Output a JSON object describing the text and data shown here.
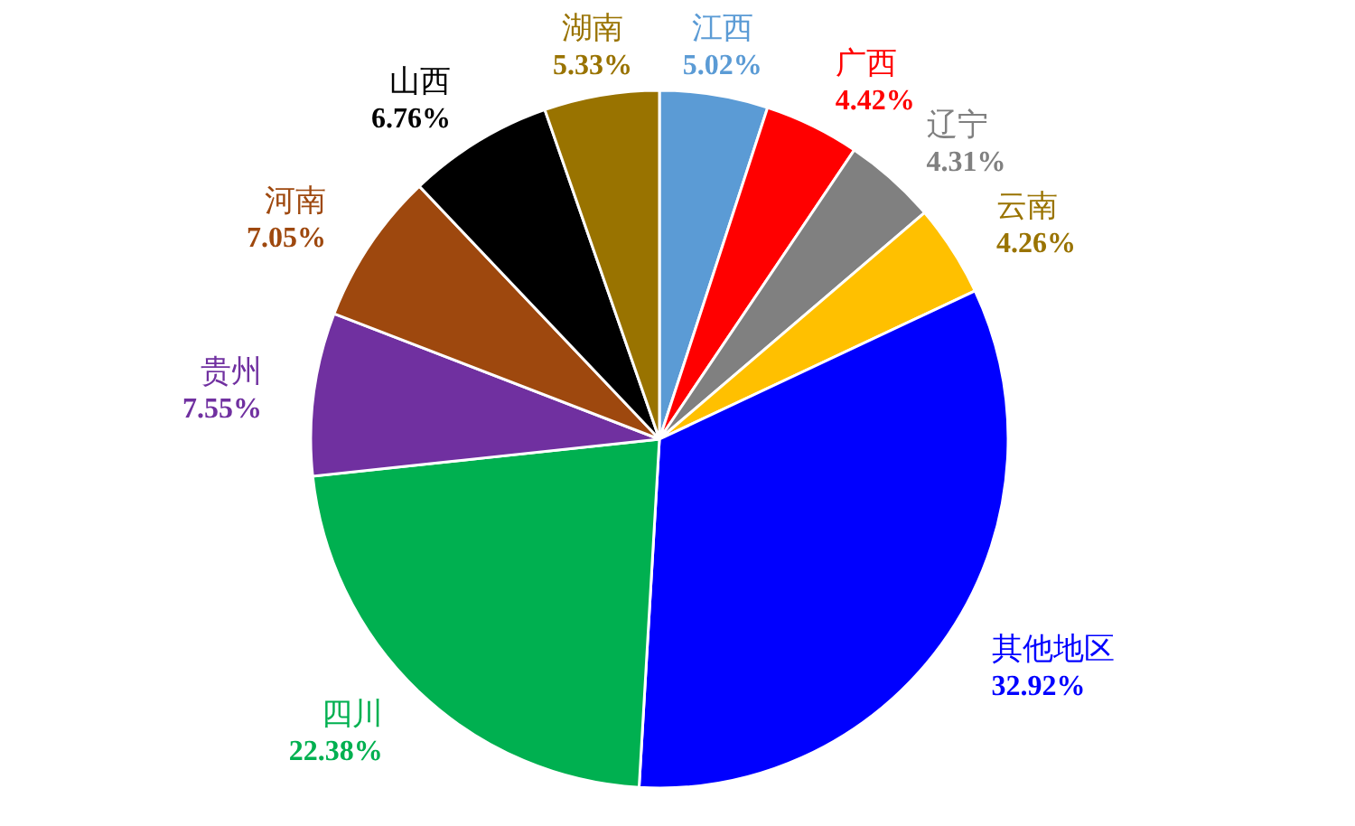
{
  "chart_data": {
    "type": "pie",
    "categories": [
      "江西",
      "广西",
      "辽宁",
      "云南",
      "其他地区",
      "四川",
      "贵州",
      "河南",
      "山西",
      "湖南"
    ],
    "values": [
      5.02,
      4.42,
      4.31,
      4.26,
      32.92,
      22.38,
      7.55,
      7.05,
      6.76,
      5.33
    ],
    "colors": [
      "#5b9bd5",
      "#ff0000",
      "#808080",
      "#ffc000",
      "#0000ff",
      "#00b050",
      "#7030a0",
      "#9e480e",
      "#000000",
      "#997300"
    ],
    "value_labels": [
      "5.02%",
      "4.42%",
      "4.31%",
      "4.26%",
      "32.92%",
      "22.38%",
      "7.55%",
      "7.05%",
      "6.76%",
      "5.33%"
    ]
  }
}
